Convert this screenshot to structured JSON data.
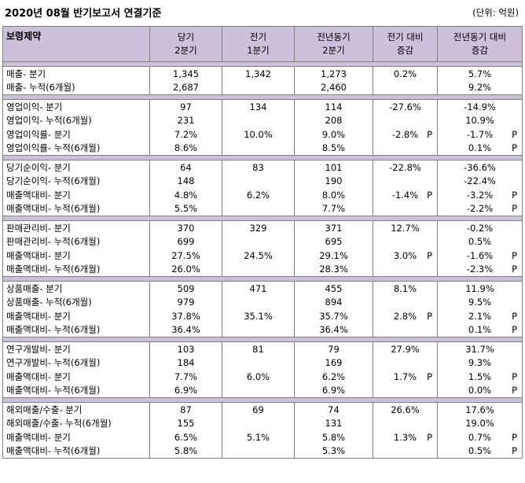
{
  "header": {
    "title": "2020년 08월 반기보고서 연결기준",
    "unit": "(단위: 억원)"
  },
  "table": {
    "columns": [
      "보령제약",
      "당기\n2분기",
      "전기\n1분기",
      "전년동기\n2분기",
      "전기 대비\n증감",
      "전년동기 대비\n증감"
    ],
    "groups": [
      [
        {
          "label": "매출- 분기",
          "cur": "1,345",
          "prev": "1,342",
          "yoy": "1,273",
          "qoq": "0.2%",
          "qoq_p": "",
          "yoy_chg": "5.7%",
          "yoy_p": ""
        },
        {
          "label": "매출- 누적(6개월)",
          "cur": "2,687",
          "prev": "",
          "yoy": "2,460",
          "qoq": "",
          "qoq_p": "",
          "yoy_chg": "9.2%",
          "yoy_p": ""
        }
      ],
      [
        {
          "label": "영업이익- 분기",
          "cur": "97",
          "prev": "134",
          "yoy": "114",
          "qoq": "-27.6%",
          "qoq_p": "",
          "yoy_chg": "-14.9%",
          "yoy_p": ""
        },
        {
          "label": "영업이익- 누적(6개월)",
          "cur": "231",
          "prev": "",
          "yoy": "208",
          "qoq": "",
          "qoq_p": "",
          "yoy_chg": "10.9%",
          "yoy_p": ""
        },
        {
          "label": "영업이익률- 분기",
          "cur": "7.2%",
          "prev": "10.0%",
          "yoy": "9.0%",
          "qoq": "-2.8%",
          "qoq_p": "P",
          "yoy_chg": "-1.7%",
          "yoy_p": "P"
        },
        {
          "label": "영업이익률- 누적(6개월)",
          "cur": "8.6%",
          "prev": "",
          "yoy": "8.5%",
          "qoq": "",
          "qoq_p": "",
          "yoy_chg": "0.1%",
          "yoy_p": "P"
        }
      ],
      [
        {
          "label": "당기순이익- 분기",
          "cur": "64",
          "prev": "83",
          "yoy": "101",
          "qoq": "-22.8%",
          "qoq_p": "",
          "yoy_chg": "-36.6%",
          "yoy_p": ""
        },
        {
          "label": "당기순이익- 누적(6개월)",
          "cur": "148",
          "prev": "",
          "yoy": "190",
          "qoq": "",
          "qoq_p": "",
          "yoy_chg": "-22.4%",
          "yoy_p": ""
        },
        {
          "label": "매출액대비- 분기",
          "cur": "4.8%",
          "prev": "6.2%",
          "yoy": "8.0%",
          "qoq": "-1.4%",
          "qoq_p": "P",
          "yoy_chg": "-3.2%",
          "yoy_p": "P"
        },
        {
          "label": "매출액대비- 누적(6개월)",
          "cur": "5.5%",
          "prev": "",
          "yoy": "7.7%",
          "qoq": "",
          "qoq_p": "",
          "yoy_chg": "-2.2%",
          "yoy_p": "P"
        }
      ],
      [
        {
          "label": "판매관리비- 분기",
          "cur": "370",
          "prev": "329",
          "yoy": "371",
          "qoq": "12.7%",
          "qoq_p": "",
          "yoy_chg": "-0.2%",
          "yoy_p": ""
        },
        {
          "label": "판매관리비- 누적(6개월)",
          "cur": "699",
          "prev": "",
          "yoy": "695",
          "qoq": "",
          "qoq_p": "",
          "yoy_chg": "0.5%",
          "yoy_p": ""
        },
        {
          "label": "매출액대비- 분기",
          "cur": "27.5%",
          "prev": "24.5%",
          "yoy": "29.1%",
          "qoq": "3.0%",
          "qoq_p": "P",
          "yoy_chg": "-1.6%",
          "yoy_p": "P"
        },
        {
          "label": "매출액대비- 누적(6개월)",
          "cur": "26.0%",
          "prev": "",
          "yoy": "28.3%",
          "qoq": "",
          "qoq_p": "",
          "yoy_chg": "-2.3%",
          "yoy_p": "P"
        }
      ],
      [
        {
          "label": "상품매출- 분기",
          "cur": "509",
          "prev": "471",
          "yoy": "455",
          "qoq": "8.1%",
          "qoq_p": "",
          "yoy_chg": "11.9%",
          "yoy_p": ""
        },
        {
          "label": "상품매출- 누적(6개월)",
          "cur": "979",
          "prev": "",
          "yoy": "894",
          "qoq": "",
          "qoq_p": "",
          "yoy_chg": "9.5%",
          "yoy_p": ""
        },
        {
          "label": "매출액대비- 분기",
          "cur": "37.8%",
          "prev": "35.1%",
          "yoy": "35.7%",
          "qoq": "2.8%",
          "qoq_p": "P",
          "yoy_chg": "2.1%",
          "yoy_p": "P"
        },
        {
          "label": "매출액대비- 누적(6개월)",
          "cur": "36.4%",
          "prev": "",
          "yoy": "36.4%",
          "qoq": "",
          "qoq_p": "",
          "yoy_chg": "0.1%",
          "yoy_p": "P"
        }
      ],
      [
        {
          "label": "연구개발비- 분기",
          "cur": "103",
          "prev": "81",
          "yoy": "79",
          "qoq": "27.9%",
          "qoq_p": "",
          "yoy_chg": "31.7%",
          "yoy_p": ""
        },
        {
          "label": "연구개발비- 누적(6개월)",
          "cur": "184",
          "prev": "",
          "yoy": "169",
          "qoq": "",
          "qoq_p": "",
          "yoy_chg": "9.3%",
          "yoy_p": ""
        },
        {
          "label": "매출액대비- 분기",
          "cur": "7.7%",
          "prev": "6.0%",
          "yoy": "6.2%",
          "qoq": "1.7%",
          "qoq_p": "P",
          "yoy_chg": "1.5%",
          "yoy_p": "P"
        },
        {
          "label": "매출액대비- 누적(6개월)",
          "cur": "6.9%",
          "prev": "",
          "yoy": "6.9%",
          "qoq": "",
          "qoq_p": "",
          "yoy_chg": "0.0%",
          "yoy_p": "P"
        }
      ],
      [
        {
          "label": "해외매출/수출- 분기",
          "cur": "87",
          "prev": "69",
          "yoy": "74",
          "qoq": "26.6%",
          "qoq_p": "",
          "yoy_chg": "17.6%",
          "yoy_p": ""
        },
        {
          "label": "해외매출/수출- 누적(6개월)",
          "cur": "155",
          "prev": "",
          "yoy": "131",
          "qoq": "",
          "qoq_p": "",
          "yoy_chg": "19.0%",
          "yoy_p": ""
        },
        {
          "label": "매출액대비- 분기",
          "cur": "6.5%",
          "prev": "5.1%",
          "yoy": "5.8%",
          "qoq": "1.3%",
          "qoq_p": "P",
          "yoy_chg": "0.7%",
          "yoy_p": "P"
        },
        {
          "label": "매출액대비- 누적(6개월)",
          "cur": "5.8%",
          "prev": "",
          "yoy": "5.3%",
          "qoq": "",
          "qoq_p": "",
          "yoy_chg": "0.5%",
          "yoy_p": "P"
        }
      ]
    ]
  },
  "colors": {
    "header_bg": "#ccc0da",
    "border": "#7f7f7f"
  }
}
